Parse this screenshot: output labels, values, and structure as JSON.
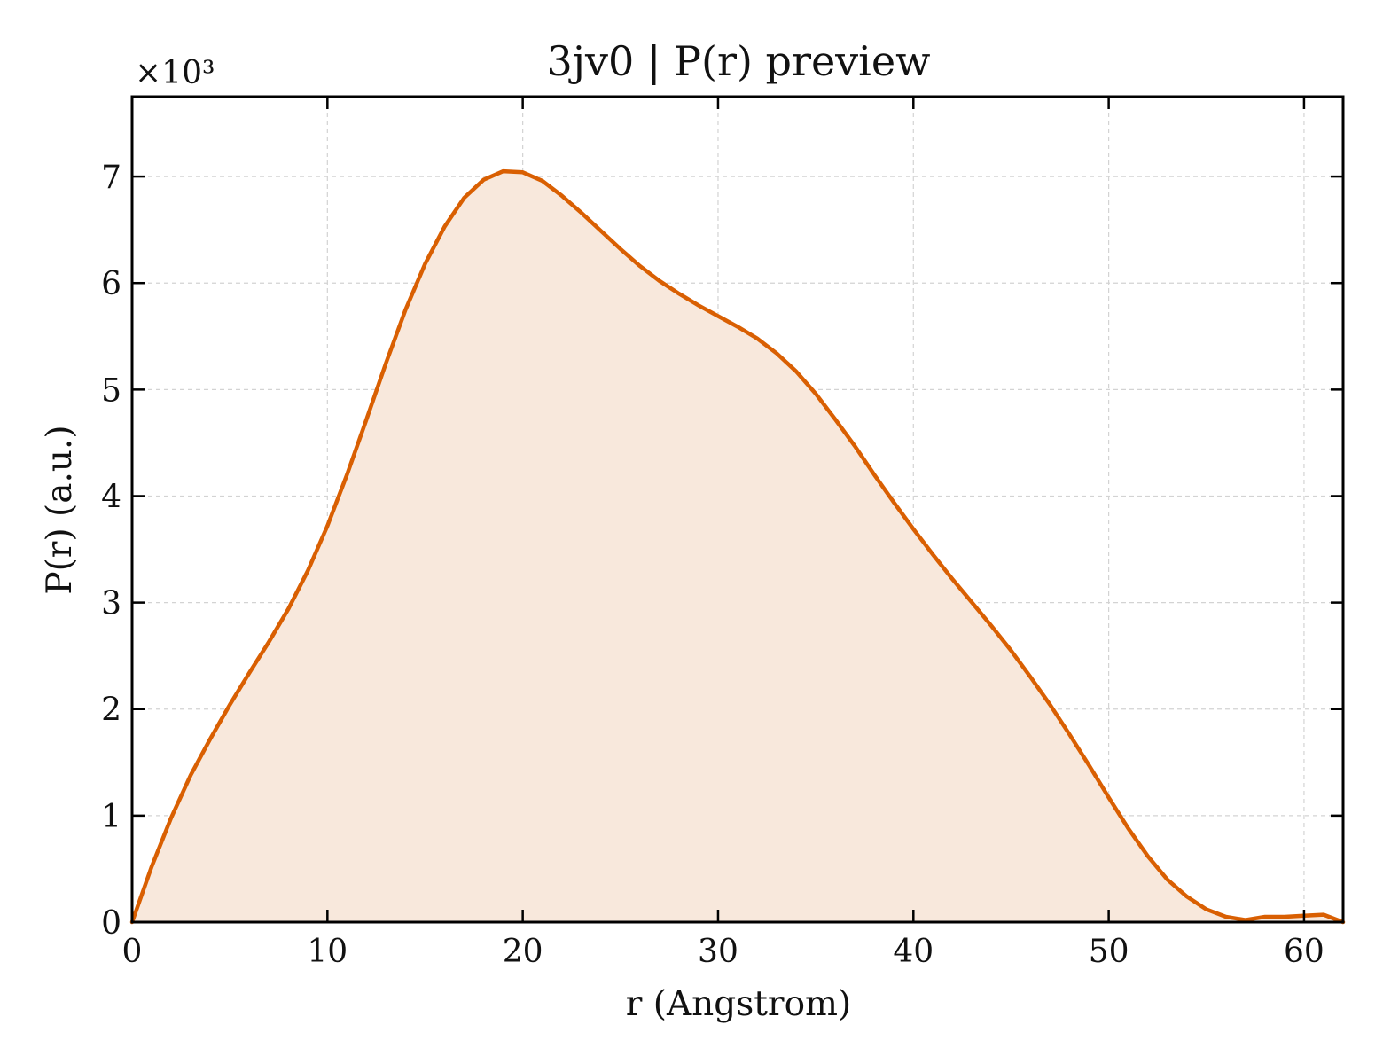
{
  "chart_data": {
    "type": "area",
    "title": "3jv0 | P(r) preview",
    "xlabel": "r (Angstrom)",
    "ylabel": "P(r) (a.u.)",
    "y_multiplier": "×10³",
    "xlim": [
      0,
      62
    ],
    "ylim": [
      0,
      7.75
    ],
    "x_ticks": [
      0,
      10,
      20,
      30,
      40,
      50,
      60
    ],
    "y_ticks": [
      0,
      1,
      2,
      3,
      4,
      5,
      6,
      7
    ],
    "grid": true,
    "legend": "none",
    "line_color": "#d95f02",
    "fill_color": "#f8e8dc",
    "series": [
      {
        "x": [
          0,
          1,
          2,
          3,
          4,
          5,
          6,
          7,
          8,
          9,
          10,
          11,
          12,
          13,
          14,
          15,
          16,
          17,
          18,
          19,
          20,
          21,
          22,
          23,
          24,
          25,
          26,
          27,
          28,
          29,
          30,
          31,
          32,
          33,
          34,
          35,
          36,
          37,
          38,
          39,
          40,
          41,
          42,
          43,
          44,
          45,
          46,
          47,
          48,
          49,
          50,
          51,
          52,
          53,
          54,
          55,
          56,
          57,
          58,
          59,
          60,
          61,
          62
        ],
        "y": [
          0,
          0.52,
          0.98,
          1.38,
          1.72,
          2.04,
          2.34,
          2.63,
          2.94,
          3.3,
          3.72,
          4.2,
          4.72,
          5.25,
          5.75,
          6.18,
          6.53,
          6.8,
          6.97,
          7.05,
          7.04,
          6.96,
          6.82,
          6.66,
          6.49,
          6.32,
          6.16,
          6.02,
          5.9,
          5.79,
          5.69,
          5.59,
          5.48,
          5.34,
          5.17,
          4.96,
          4.72,
          4.47,
          4.2,
          3.94,
          3.69,
          3.45,
          3.22,
          3.0,
          2.78,
          2.55,
          2.3,
          2.04,
          1.76,
          1.47,
          1.17,
          0.88,
          0.62,
          0.4,
          0.24,
          0.12,
          0.05,
          0.02,
          0.05,
          0.05,
          0.06,
          0.07,
          0.0
        ]
      }
    ]
  }
}
